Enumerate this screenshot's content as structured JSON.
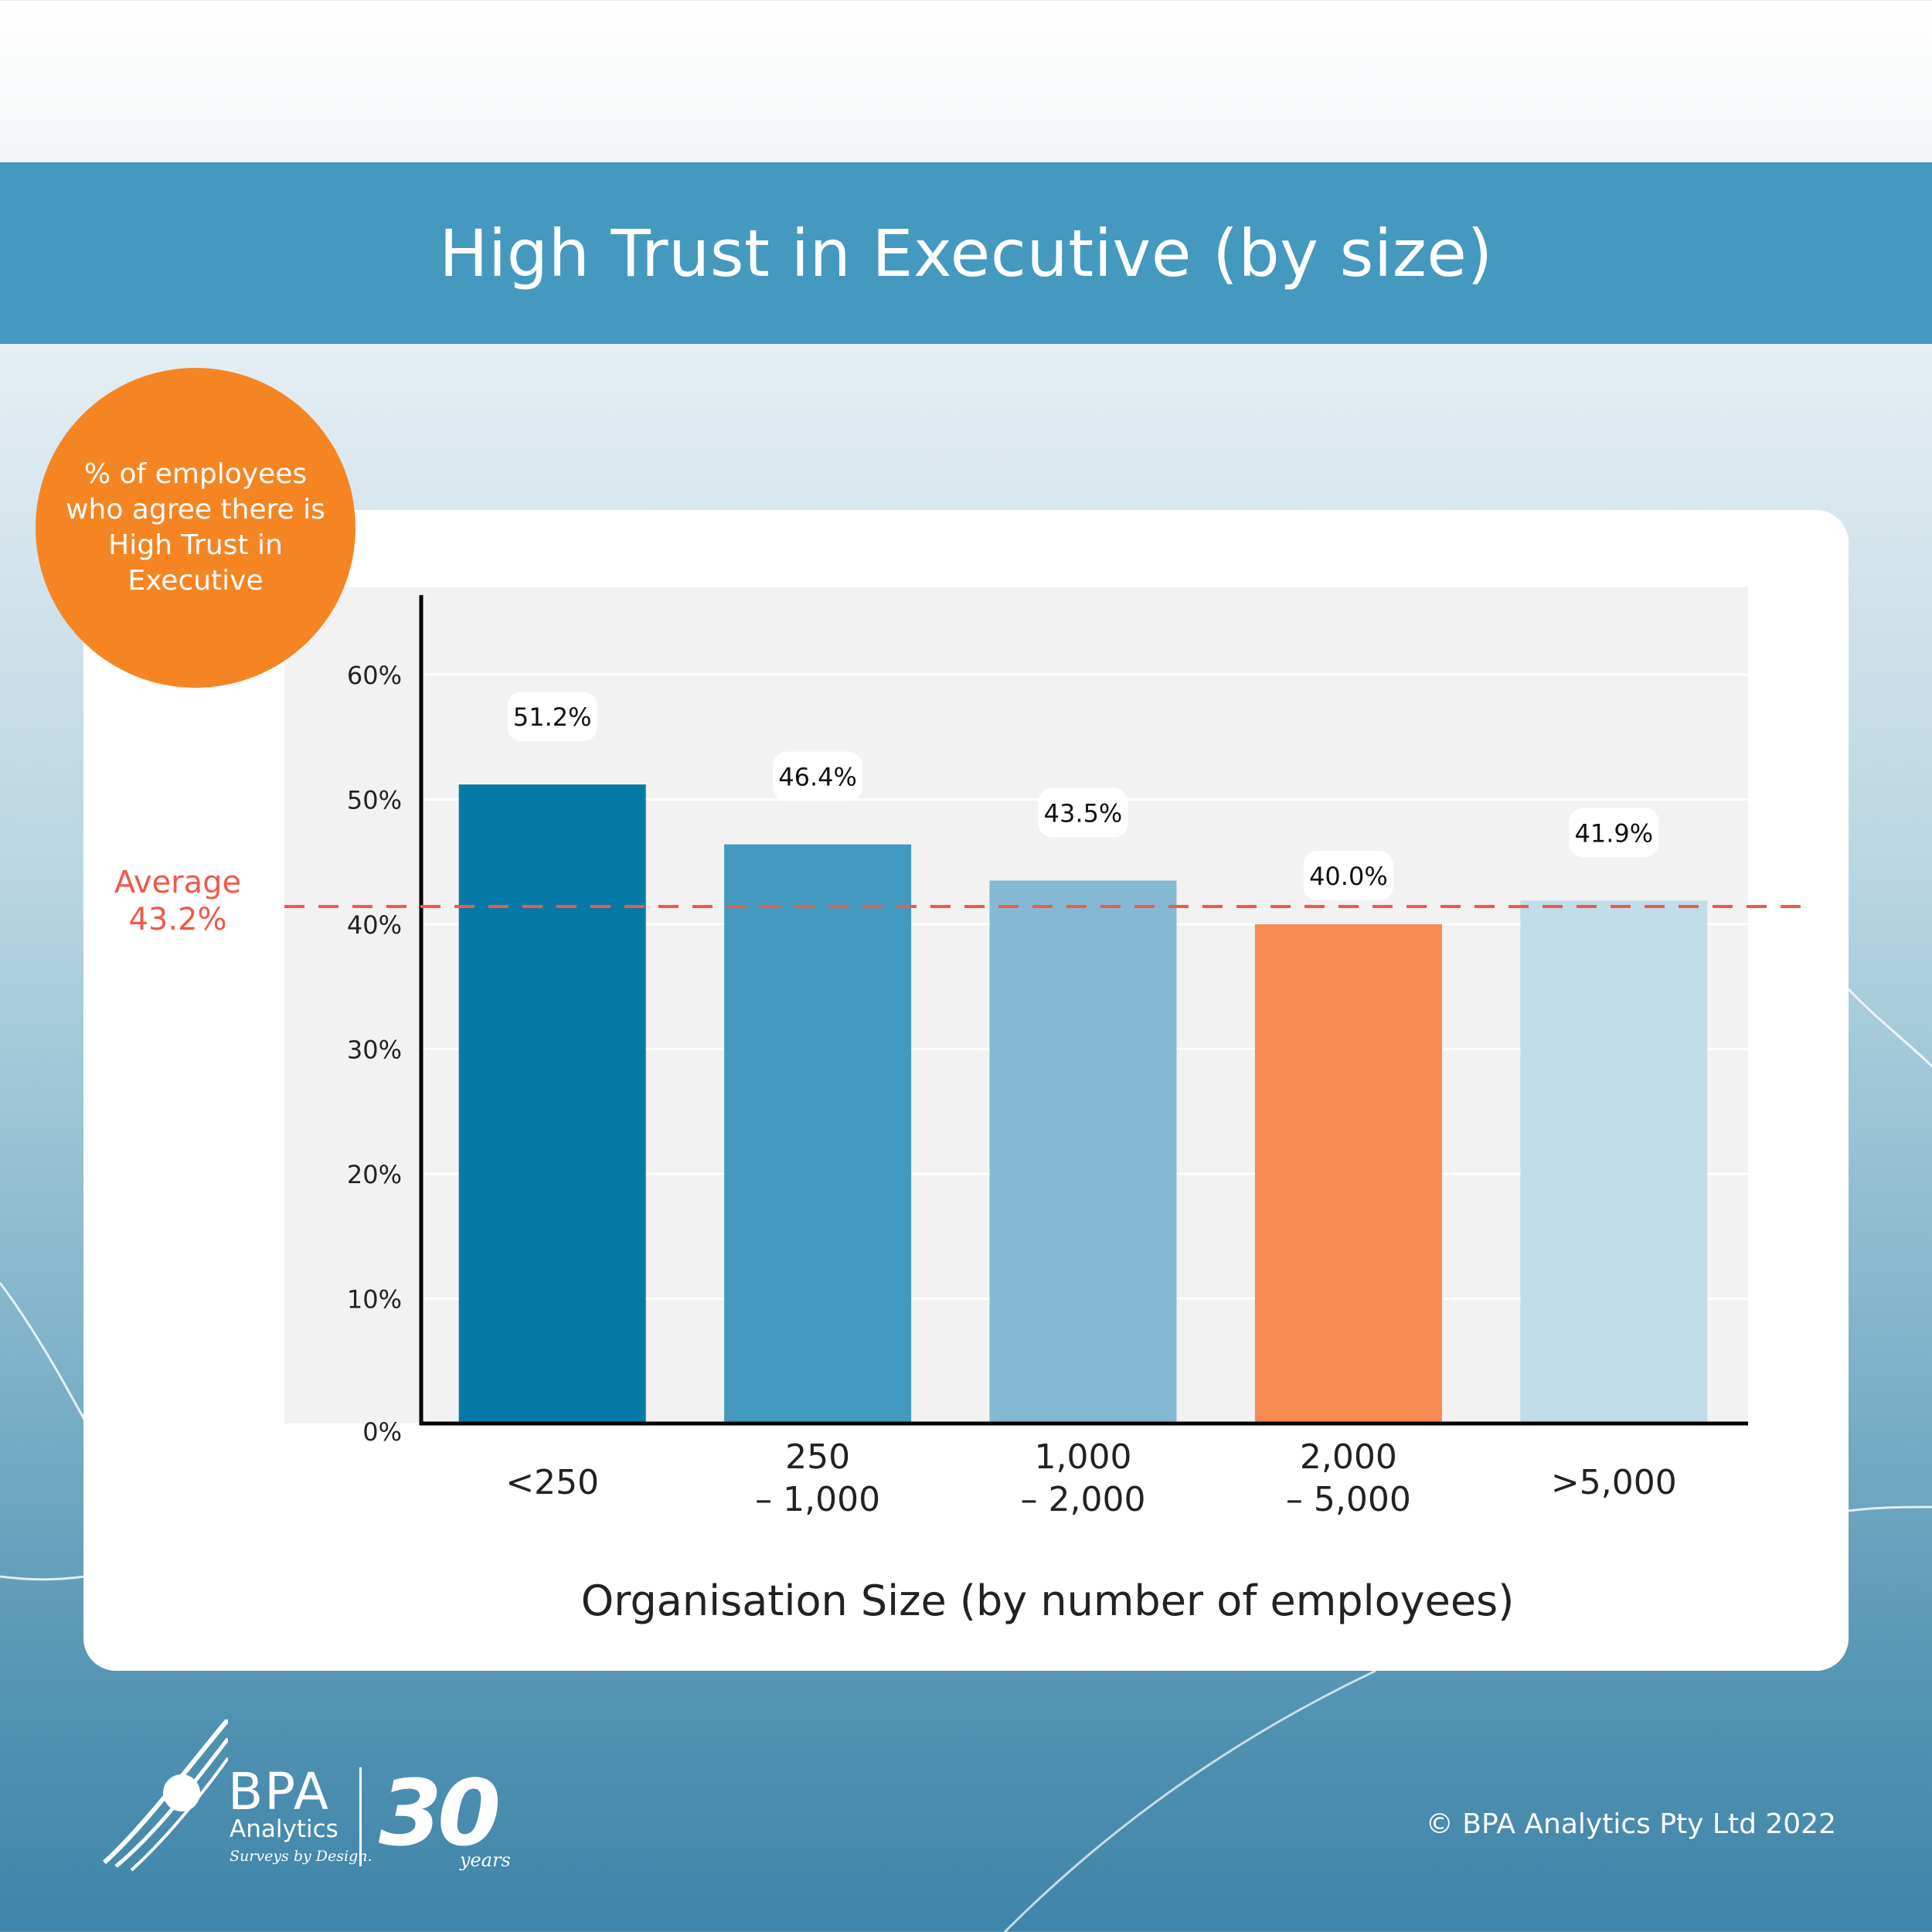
{
  "title": "High Trust in Executive (by size)",
  "badge_text": "% of employees who agree there is High Trust in Executive",
  "average": {
    "label": "Average",
    "value": 43.2,
    "value_label": "43.2%",
    "color": "#f0594a"
  },
  "copyright": "© BPA Analytics Pty Ltd 2022",
  "logo": {
    "name": "BPA",
    "sub": "Analytics",
    "tagline": "Surveys by Design.",
    "anniversary": "30",
    "anniversary_sub": "years"
  },
  "colors": {
    "banner": "#4599bf",
    "badge": "#f58523",
    "plot_bg": "#f2f2f2"
  },
  "chart_data": {
    "type": "bar",
    "title": "High Trust in Executive (by size)",
    "xlabel": "Organisation Size (by number of employees)",
    "ylabel": "",
    "categories": [
      [
        "<250"
      ],
      [
        "250",
        "– 1,000"
      ],
      [
        "1,000",
        "– 2,000"
      ],
      [
        "2,000",
        "– 5,000"
      ],
      [
        ">5,000"
      ]
    ],
    "values": [
      51.2,
      46.4,
      43.5,
      40.0,
      41.9
    ],
    "value_labels": [
      "51.2%",
      "46.4%",
      "43.5%",
      "40.0%",
      "41.9%"
    ],
    "bar_colors": [
      "#0779a7",
      "#449abe",
      "#85b9d3",
      "#f68a53",
      "#c1dde9"
    ],
    "yticks": [
      0,
      10,
      20,
      30,
      40,
      50,
      60
    ],
    "ytick_labels": [
      "0%",
      "10%",
      "20%",
      "30%",
      "40%",
      "50%",
      "60%"
    ],
    "ylim": [
      0,
      66
    ],
    "grid": true,
    "legend": "none"
  }
}
